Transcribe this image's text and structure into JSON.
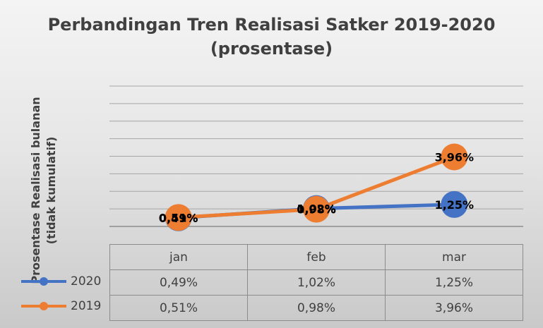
{
  "chart_data": {
    "type": "line",
    "title_line1": "Perbandingan Tren Realisasi Satker 2019-2020",
    "title_line2": "(prosentase)",
    "ylabel_line1": "Prosentase Realisasi bulanan",
    "ylabel_line2": "(tidak kumulatif)",
    "xlabel": "",
    "categories": [
      "jan",
      "feb",
      "mar"
    ],
    "ylim": [
      0,
      8
    ],
    "grid": true,
    "legend": "data-table",
    "series": [
      {
        "name": "2020",
        "color": "#4472c4",
        "values": [
          0.49,
          1.02,
          1.25
        ],
        "labels": [
          "0,49%",
          "1,02%",
          "1,25%"
        ]
      },
      {
        "name": "2019",
        "color": "#ed7d31",
        "values": [
          0.51,
          0.98,
          3.96
        ],
        "labels": [
          "0,51%",
          "0,98%",
          "3,96%"
        ]
      }
    ]
  }
}
